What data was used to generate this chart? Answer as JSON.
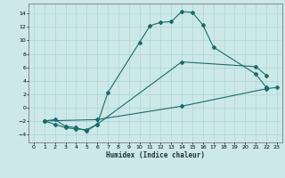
{
  "xlabel": "Humidex (Indice chaleur)",
  "background_color": "#cce8e8",
  "grid_color": "#b0d4d4",
  "line_color": "#1a6b6b",
  "xlim": [
    -0.5,
    23.5
  ],
  "ylim": [
    -5.2,
    15.5
  ],
  "xticks": [
    0,
    1,
    2,
    3,
    4,
    5,
    6,
    7,
    8,
    9,
    10,
    11,
    12,
    13,
    14,
    15,
    16,
    17,
    18,
    19,
    20,
    21,
    22,
    23
  ],
  "yticks": [
    -4,
    -2,
    0,
    2,
    4,
    6,
    8,
    10,
    12,
    14
  ],
  "line1_x": [
    1,
    2,
    3,
    4,
    5,
    6,
    7,
    10,
    11,
    12,
    13,
    14,
    15,
    16,
    17,
    21,
    22
  ],
  "line1_y": [
    -2,
    -1.8,
    -2.8,
    -3.0,
    -3.5,
    -2.5,
    2.2,
    9.7,
    12.2,
    12.7,
    12.8,
    14.3,
    14.2,
    12.3,
    9.0,
    5.0,
    3.0
  ],
  "line2_x": [
    1,
    2,
    3,
    4,
    5,
    6,
    14,
    21,
    22
  ],
  "line2_y": [
    -2,
    -2.5,
    -3.0,
    -3.2,
    -3.3,
    -2.5,
    6.8,
    6.1,
    4.8
  ],
  "line3_x": [
    1,
    6,
    14,
    22,
    23
  ],
  "line3_y": [
    -2.0,
    -1.8,
    0.2,
    2.8,
    3.0
  ]
}
